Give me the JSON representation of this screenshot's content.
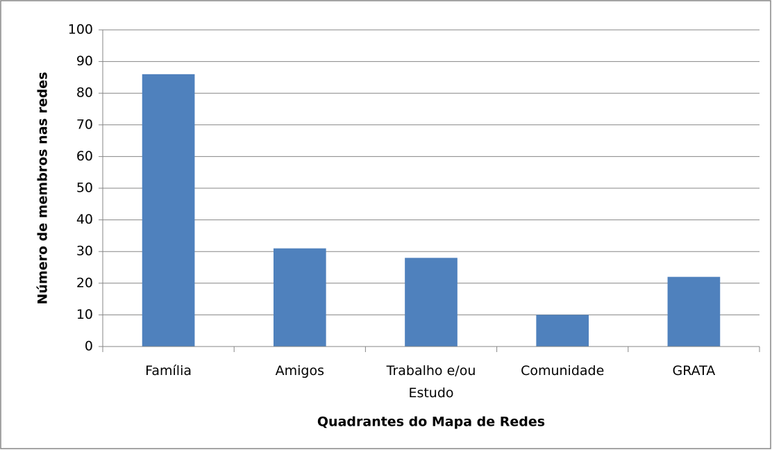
{
  "chart_data": {
    "type": "bar",
    "x_label": "Quadrantes do Mapa de Redes",
    "y_label": "Número de membros nas redes",
    "categories": [
      "Família",
      "Amigos",
      "Trabalho e/ou Estudo",
      "Comunidade",
      "GRATA"
    ],
    "values": [
      86,
      31,
      28,
      10,
      22
    ],
    "color": "#4f81bd",
    "ylim": [
      0,
      100
    ],
    "yticks": [
      0,
      10,
      20,
      30,
      40,
      50,
      60,
      70,
      80,
      90,
      100
    ],
    "grid": true
  }
}
